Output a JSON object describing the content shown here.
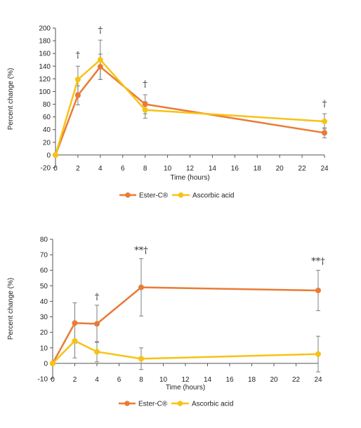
{
  "colors": {
    "ester": "#e97b35",
    "ascorbic": "#f8c214",
    "error_bar": "#7f7f7f",
    "axis": "#555555"
  },
  "chart_data": [
    {
      "type": "line",
      "xlabel": "Time (hours)",
      "ylabel": "Percent change (%)",
      "xlim": [
        0,
        24
      ],
      "ylim": [
        -20,
        200
      ],
      "xticks": [
        "0",
        "2",
        "4",
        "6",
        "8",
        "10",
        "12",
        "14",
        "16",
        "18",
        "20",
        "22",
        "24"
      ],
      "yticks": [
        "-20",
        "0",
        "20",
        "40",
        "60",
        "80",
        "100",
        "120",
        "140",
        "160",
        "180",
        "200"
      ],
      "legend_position": "bottom",
      "grid": false,
      "series": [
        {
          "name": "Ester-C®",
          "color": "#e97b35",
          "x": [
            0,
            2,
            4,
            8,
            24
          ],
          "y": [
            0,
            94,
            139,
            80,
            35
          ],
          "err": [
            0,
            15,
            20,
            15,
            8
          ]
        },
        {
          "name": "Ascorbic acid",
          "color": "#f8c214",
          "x": [
            0,
            2,
            4,
            8,
            24
          ],
          "y": [
            0,
            119,
            150,
            71,
            53
          ],
          "err": [
            0,
            21,
            31,
            13,
            12
          ]
        }
      ],
      "annotations": [
        {
          "x": 2,
          "y": 153,
          "text": "†"
        },
        {
          "x": 4,
          "y": 192,
          "text": "†"
        },
        {
          "x": 8,
          "y": 107,
          "text": "†"
        },
        {
          "x": 24,
          "y": 76,
          "text": "†"
        }
      ]
    },
    {
      "type": "line",
      "xlabel": "Time (hours)",
      "ylabel": "Percent change (%)",
      "xlim": [
        0,
        24
      ],
      "ylim": [
        -10,
        80
      ],
      "xticks": [
        "0",
        "2",
        "4",
        "6",
        "8",
        "10",
        "12",
        "14",
        "16",
        "18",
        "20",
        "22",
        "24"
      ],
      "yticks": [
        "-10",
        "0",
        "10",
        "20",
        "30",
        "40",
        "50",
        "60",
        "70",
        "80"
      ],
      "legend_position": "bottom",
      "grid": false,
      "series": [
        {
          "name": "Ester-C®",
          "color": "#e97b35",
          "x": [
            0,
            2,
            4,
            8,
            24
          ],
          "y": [
            0,
            26,
            25.5,
            49,
            47
          ],
          "err": [
            0,
            13,
            12,
            18.5,
            13
          ]
        },
        {
          "name": "Ascorbic acid",
          "color": "#f8c214",
          "x": [
            0,
            2,
            4,
            8,
            24
          ],
          "y": [
            0,
            14.5,
            7.5,
            3,
            6
          ],
          "err": [
            0,
            11,
            6.5,
            7,
            11.5
          ]
        }
      ],
      "annotations": [
        {
          "x": 4,
          "y": 41,
          "text": "†"
        },
        {
          "x": 8,
          "y": 71,
          "text": "**†"
        },
        {
          "x": 24,
          "y": 64,
          "text": "**†"
        }
      ]
    }
  ]
}
